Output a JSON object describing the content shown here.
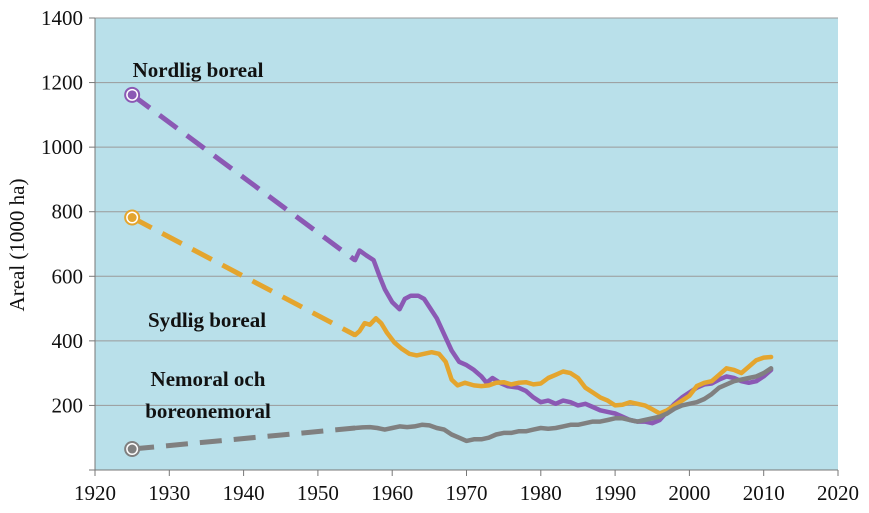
{
  "chart_data": {
    "type": "line",
    "title": "",
    "xlabel": "",
    "ylabel": "Areal (1000 ha)",
    "xlim": [
      1920,
      2020
    ],
    "ylim": [
      0,
      1400
    ],
    "xticks": [
      1920,
      1930,
      1940,
      1950,
      1960,
      1970,
      1980,
      1990,
      2000,
      2010,
      2020
    ],
    "yticks": [
      200,
      400,
      600,
      800,
      1000,
      1200,
      1400
    ],
    "grid": "horizontal",
    "background_color": "#b9e0ea",
    "series": [
      {
        "name": "Nordlig boreal",
        "color": "#8b59b4",
        "marker_point": [
          1925,
          1162
        ],
        "dashed": [
          [
            1925,
            1162
          ],
          [
            1955,
            650
          ]
        ],
        "values": [
          [
            1955,
            650
          ],
          [
            1955.6,
            680
          ],
          [
            1956.5,
            665
          ],
          [
            1957.5,
            650
          ],
          [
            1958.3,
            600
          ],
          [
            1959,
            560
          ],
          [
            1960,
            520
          ],
          [
            1961,
            498
          ],
          [
            1961.7,
            530
          ],
          [
            1962.5,
            540
          ],
          [
            1963.5,
            540
          ],
          [
            1964.3,
            530
          ],
          [
            1965,
            505
          ],
          [
            1966,
            470
          ],
          [
            1967,
            420
          ],
          [
            1968,
            370
          ],
          [
            1969,
            335
          ],
          [
            1970,
            325
          ],
          [
            1971,
            310
          ],
          [
            1972,
            290
          ],
          [
            1972.7,
            270
          ],
          [
            1973.5,
            285
          ],
          [
            1974.5,
            270
          ],
          [
            1975.5,
            260
          ],
          [
            1977,
            255
          ],
          [
            1978,
            245
          ],
          [
            1979,
            225
          ],
          [
            1980,
            210
          ],
          [
            1981,
            215
          ],
          [
            1982,
            205
          ],
          [
            1983,
            215
          ],
          [
            1984,
            210
          ],
          [
            1985,
            200
          ],
          [
            1986,
            205
          ],
          [
            1987,
            195
          ],
          [
            1988,
            185
          ],
          [
            1989,
            180
          ],
          [
            1990,
            175
          ],
          [
            1991,
            165
          ],
          [
            1992,
            155
          ],
          [
            1993,
            150
          ],
          [
            1994,
            150
          ],
          [
            1995,
            145
          ],
          [
            1996,
            155
          ],
          [
            1997,
            180
          ],
          [
            1998,
            205
          ],
          [
            1999,
            225
          ],
          [
            2000,
            240
          ],
          [
            2001,
            255
          ],
          [
            2002,
            265
          ],
          [
            2003,
            268
          ],
          [
            2004,
            280
          ],
          [
            2005,
            290
          ],
          [
            2006,
            285
          ],
          [
            2007,
            275
          ],
          [
            2008,
            270
          ],
          [
            2009,
            275
          ],
          [
            2010,
            290
          ],
          [
            2011,
            310
          ]
        ]
      },
      {
        "name": "Sydlig boreal",
        "color": "#e4a52e",
        "marker_point": [
          1925,
          782
        ],
        "dashed": [
          [
            1925,
            782
          ],
          [
            1955,
            418
          ]
        ],
        "values": [
          [
            1955,
            418
          ],
          [
            1955.6,
            430
          ],
          [
            1956.3,
            455
          ],
          [
            1957,
            450
          ],
          [
            1957.8,
            470
          ],
          [
            1958.5,
            455
          ],
          [
            1959.3,
            425
          ],
          [
            1960.3,
            395
          ],
          [
            1961.3,
            375
          ],
          [
            1962.3,
            360
          ],
          [
            1963.3,
            355
          ],
          [
            1964.3,
            360
          ],
          [
            1965.3,
            365
          ],
          [
            1966.3,
            360
          ],
          [
            1967.2,
            335
          ],
          [
            1968,
            280
          ],
          [
            1968.8,
            262
          ],
          [
            1969.8,
            270
          ],
          [
            1971,
            262
          ],
          [
            1972,
            260
          ],
          [
            1973,
            262
          ],
          [
            1974,
            270
          ],
          [
            1975,
            272
          ],
          [
            1976,
            265
          ],
          [
            1977,
            270
          ],
          [
            1978,
            272
          ],
          [
            1979,
            265
          ],
          [
            1980,
            268
          ],
          [
            1981,
            285
          ],
          [
            1982,
            295
          ],
          [
            1983,
            305
          ],
          [
            1984,
            300
          ],
          [
            1985,
            285
          ],
          [
            1986,
            255
          ],
          [
            1987,
            240
          ],
          [
            1988,
            225
          ],
          [
            1989,
            215
          ],
          [
            1990,
            200
          ],
          [
            1991,
            202
          ],
          [
            1992,
            210
          ],
          [
            1993,
            205
          ],
          [
            1994,
            200
          ],
          [
            1995,
            188
          ],
          [
            1996,
            175
          ],
          [
            1997,
            185
          ],
          [
            1998,
            200
          ],
          [
            1999,
            215
          ],
          [
            2000,
            230
          ],
          [
            2001,
            260
          ],
          [
            2002,
            270
          ],
          [
            2003,
            275
          ],
          [
            2004,
            295
          ],
          [
            2005,
            315
          ],
          [
            2006,
            310
          ],
          [
            2007,
            300
          ],
          [
            2008,
            320
          ],
          [
            2009,
            340
          ],
          [
            2010,
            348
          ],
          [
            2011,
            350
          ]
        ]
      },
      {
        "name": "Nemoral och boreonemoral",
        "color": "#808080",
        "marker_point": [
          1925,
          65
        ],
        "dashed": [
          [
            1925,
            65
          ],
          [
            1955,
            130
          ]
        ],
        "values": [
          [
            1955,
            130
          ],
          [
            1956,
            132
          ],
          [
            1957,
            133
          ],
          [
            1958,
            130
          ],
          [
            1959,
            125
          ],
          [
            1960,
            130
          ],
          [
            1961,
            135
          ],
          [
            1962,
            133
          ],
          [
            1963,
            135
          ],
          [
            1964,
            140
          ],
          [
            1965,
            138
          ],
          [
            1966,
            130
          ],
          [
            1967,
            125
          ],
          [
            1968,
            110
          ],
          [
            1969,
            100
          ],
          [
            1970,
            90
          ],
          [
            1971,
            95
          ],
          [
            1972,
            95
          ],
          [
            1973,
            100
          ],
          [
            1974,
            110
          ],
          [
            1975,
            115
          ],
          [
            1976,
            115
          ],
          [
            1977,
            120
          ],
          [
            1978,
            120
          ],
          [
            1979,
            125
          ],
          [
            1980,
            130
          ],
          [
            1981,
            128
          ],
          [
            1982,
            130
          ],
          [
            1983,
            135
          ],
          [
            1984,
            140
          ],
          [
            1985,
            140
          ],
          [
            1986,
            145
          ],
          [
            1987,
            150
          ],
          [
            1988,
            150
          ],
          [
            1989,
            155
          ],
          [
            1990,
            160
          ],
          [
            1991,
            160
          ],
          [
            1992,
            155
          ],
          [
            1993,
            150
          ],
          [
            1994,
            155
          ],
          [
            1995,
            160
          ],
          [
            1996,
            165
          ],
          [
            1997,
            175
          ],
          [
            1998,
            190
          ],
          [
            1999,
            200
          ],
          [
            2000,
            205
          ],
          [
            2001,
            210
          ],
          [
            2002,
            220
          ],
          [
            2003,
            235
          ],
          [
            2004,
            255
          ],
          [
            2005,
            265
          ],
          [
            2006,
            275
          ],
          [
            2007,
            280
          ],
          [
            2008,
            285
          ],
          [
            2009,
            290
          ],
          [
            2010,
            300
          ],
          [
            2011,
            315
          ]
        ]
      }
    ]
  }
}
